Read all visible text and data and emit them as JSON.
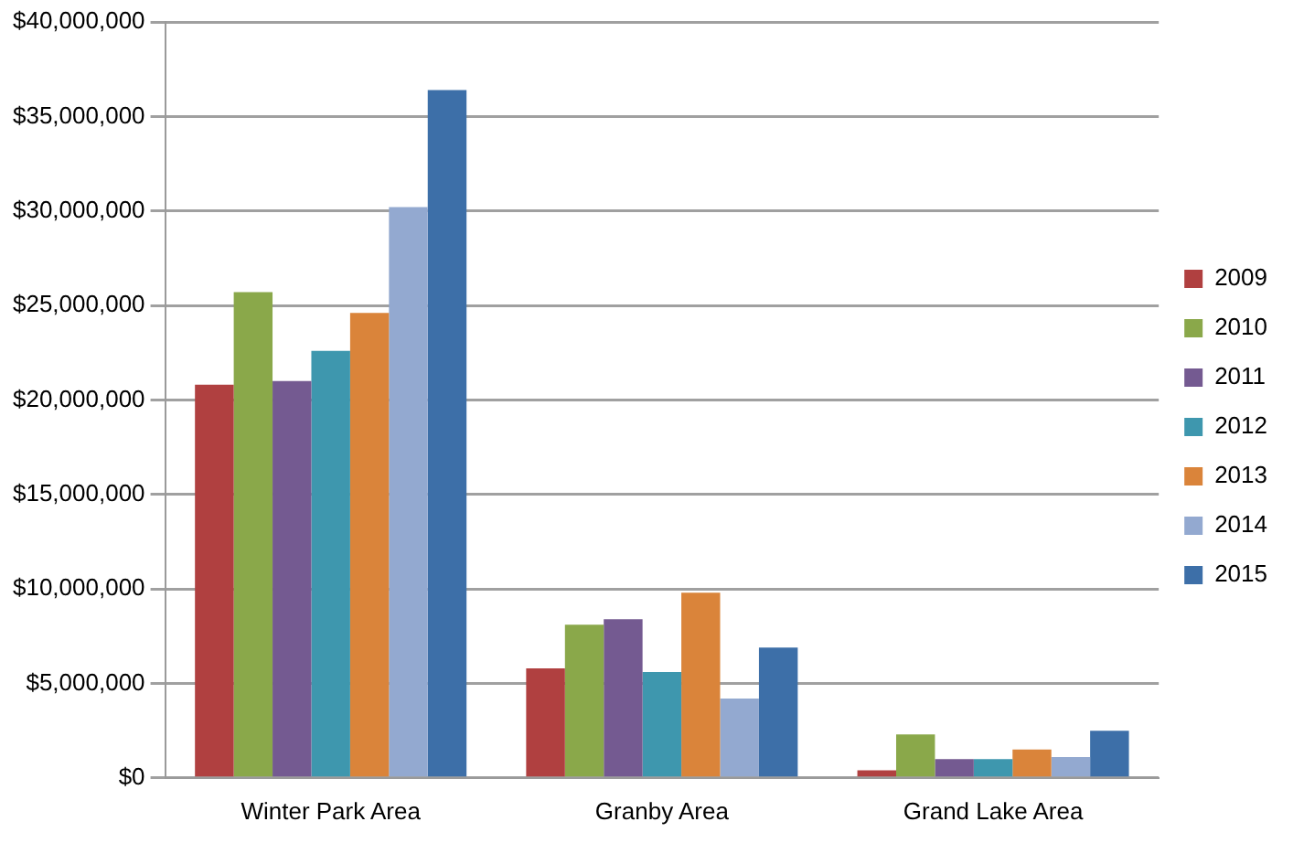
{
  "chart_data": {
    "type": "bar",
    "categories": [
      "Winter Park Area",
      "Granby Area",
      "Grand Lake Area"
    ],
    "series": [
      {
        "name": "2009",
        "color": "#b04040",
        "values": [
          20800000,
          5800000,
          400000
        ]
      },
      {
        "name": "2010",
        "color": "#8aa84a",
        "values": [
          25700000,
          8100000,
          2300000
        ]
      },
      {
        "name": "2011",
        "color": "#745a91",
        "values": [
          21000000,
          8400000,
          1000000
        ]
      },
      {
        "name": "2012",
        "color": "#3e97ae",
        "values": [
          22600000,
          5600000,
          1000000
        ]
      },
      {
        "name": "2013",
        "color": "#da843a",
        "values": [
          24600000,
          9800000,
          1500000
        ]
      },
      {
        "name": "2014",
        "color": "#93a9d0",
        "values": [
          30200000,
          4200000,
          1100000
        ]
      },
      {
        "name": "2015",
        "color": "#3d6fa8",
        "values": [
          36400000,
          6900000,
          2500000
        ]
      }
    ],
    "ylim": [
      0,
      40000000
    ],
    "yticks": [
      {
        "value": 0,
        "label": "$0"
      },
      {
        "value": 5000000,
        "label": "$5,000,000"
      },
      {
        "value": 10000000,
        "label": "$10,000,000"
      },
      {
        "value": 15000000,
        "label": "$15,000,000"
      },
      {
        "value": 20000000,
        "label": "$20,000,000"
      },
      {
        "value": 25000000,
        "label": "$25,000,000"
      },
      {
        "value": 30000000,
        "label": "$30,000,000"
      },
      {
        "value": 35000000,
        "label": "$35,000,000"
      },
      {
        "value": 40000000,
        "label": "$40,000,000"
      }
    ],
    "grid": "y",
    "legend": "right"
  }
}
